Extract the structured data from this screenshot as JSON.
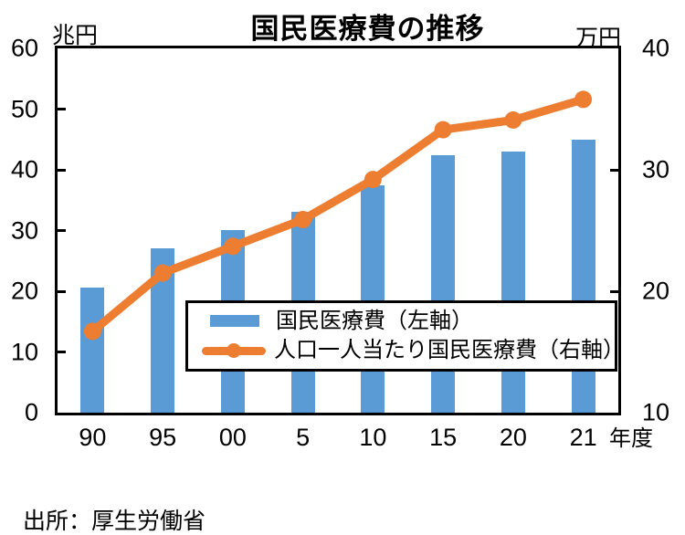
{
  "title": "国民医療費の推移",
  "source": "出所：厚生労働省",
  "left_axis": {
    "unit": "兆円",
    "ticks": [
      60,
      50,
      40,
      30,
      20,
      10,
      0
    ]
  },
  "right_axis": {
    "unit": "万円",
    "ticks": [
      40,
      30,
      20,
      10
    ]
  },
  "x_axis": {
    "suffix": "年度"
  },
  "legend": {
    "bar_label": "国民医療費（左軸）",
    "line_label": "人口一人当たり国民医療費（右軸）"
  },
  "colors": {
    "bar": "#5B9BD5",
    "line": "#ED7D31",
    "frame": "#000000",
    "text": "#000000"
  },
  "chart_data": {
    "type": "bar+line",
    "title": "国民医療費の推移",
    "categories": [
      "90",
      "95",
      "00",
      "5",
      "10",
      "15",
      "20",
      "21"
    ],
    "x_axis_unit": "年度",
    "series": [
      {
        "name": "国民医療費（左軸）",
        "type": "bar",
        "axis": "left",
        "unit": "兆円",
        "values": [
          20.6,
          27.0,
          30.1,
          33.1,
          37.4,
          42.4,
          43.0,
          45.0
        ]
      },
      {
        "name": "人口一人当たり国民医療費（右軸）",
        "type": "line",
        "axis": "right",
        "unit": "万円",
        "values": [
          16.7,
          21.5,
          23.7,
          25.9,
          29.2,
          33.3,
          34.1,
          35.8
        ]
      }
    ],
    "left_ylim": [
      0,
      60
    ],
    "right_ylim": [
      10,
      40
    ],
    "grid": false,
    "legend_position": "inside-bottom-center",
    "source": "出所：厚生労働省"
  }
}
